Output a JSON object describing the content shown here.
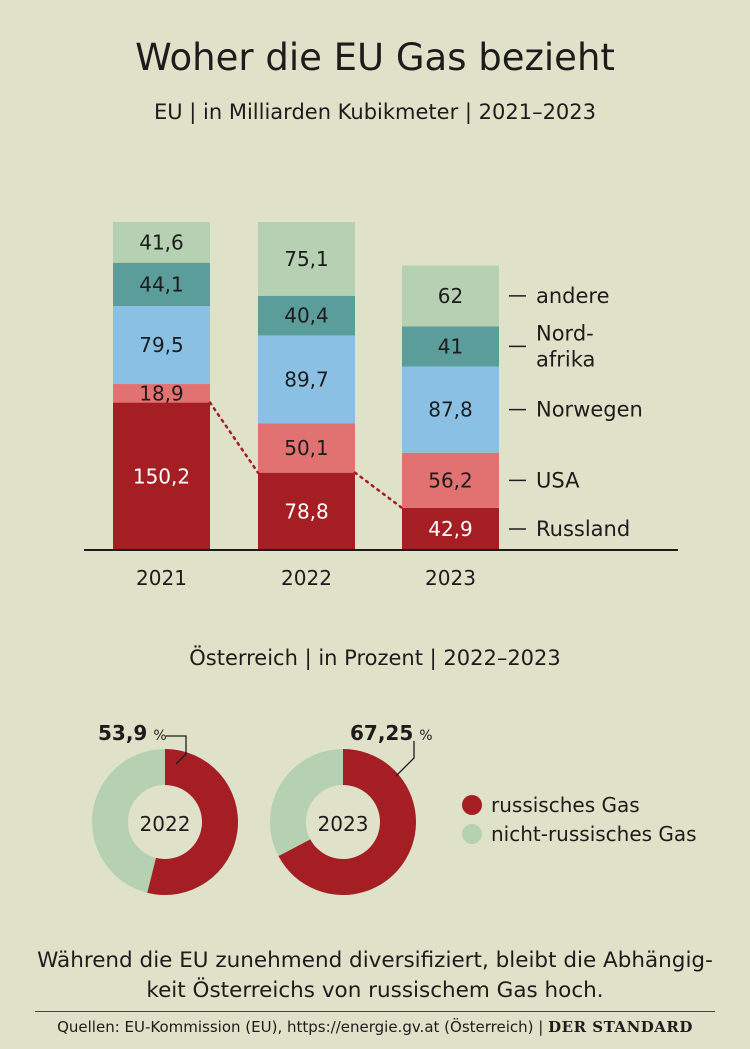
{
  "title": "Woher die EU Gas bezieht",
  "subtitle": "EU | in Milliarden Kubikmeter | 2021–2023",
  "pie_subtitle": "Österreich | in Prozent | 2022–2023",
  "caption": "Während die EU zunehmend diversifiziert, bleibt die Abhängig-keit Österreichs von russischem Gas hoch.",
  "footer": {
    "sources": "Quellen: EU-Kommission (EU), https://energie.gv.at (Österreich)",
    "separator": "|",
    "brand": "DER STANDARD"
  },
  "colors": {
    "russland": "#a51e24",
    "usa": "#e27272",
    "norwegen": "#89c0e4",
    "nordafrika": "#5a9d9a",
    "andere": "#b5d1b1",
    "russian_gas": "#a51e24",
    "non_russian_gas": "#b5d1b1"
  },
  "chart_data": [
    {
      "type": "bar",
      "stacked": true,
      "title": "Woher die EU Gas bezieht",
      "subtitle": "EU | in Milliarden Kubikmeter | 2021–2023",
      "unit": "Milliarden Kubikmeter",
      "categories": [
        "2021",
        "2022",
        "2023"
      ],
      "series": [
        {
          "key": "russland",
          "name": "Russland",
          "values": [
            150.2,
            78.8,
            42.9
          ],
          "labels": [
            "150,2",
            "78,8",
            "42,9"
          ],
          "label_color": "#ffffff"
        },
        {
          "key": "usa",
          "name": "USA",
          "values": [
            18.9,
            50.1,
            56.2
          ],
          "labels": [
            "18,9",
            "50,1",
            "56,2"
          ],
          "label_color": "#1c1c1c"
        },
        {
          "key": "norwegen",
          "name": "Norwegen",
          "values": [
            79.5,
            89.7,
            87.8
          ],
          "labels": [
            "79,5",
            "89,7",
            "87,8"
          ],
          "label_color": "#1c1c1c"
        },
        {
          "key": "nordafrika",
          "name": "Nord-afrika",
          "legend_lines": [
            "Nord-",
            "afrika"
          ],
          "values": [
            44.1,
            40.4,
            41
          ],
          "labels": [
            "44,1",
            "40,4",
            "41"
          ],
          "label_color": "#1c1c1c"
        },
        {
          "key": "andere",
          "name": "andere",
          "values": [
            41.6,
            75.1,
            62
          ],
          "labels": [
            "41,6",
            "75,1",
            "62"
          ],
          "label_color": "#1c1c1c"
        }
      ],
      "annotations": [
        "dotted line connecting the top of Russland segments"
      ]
    },
    {
      "type": "pie",
      "donut": true,
      "title": "Österreich | in Prozent | 2022–2023",
      "unit": "%",
      "charts": [
        {
          "year": "2022",
          "russian_share": 53.9,
          "label": "53,9"
        },
        {
          "year": "2023",
          "russian_share": 67.25,
          "label": "67,25"
        }
      ],
      "percent_sign": "%",
      "legend": [
        {
          "key": "russian_gas",
          "name": "russisches Gas"
        },
        {
          "key": "non_russian_gas",
          "name": "nicht-russisches Gas"
        }
      ]
    }
  ]
}
